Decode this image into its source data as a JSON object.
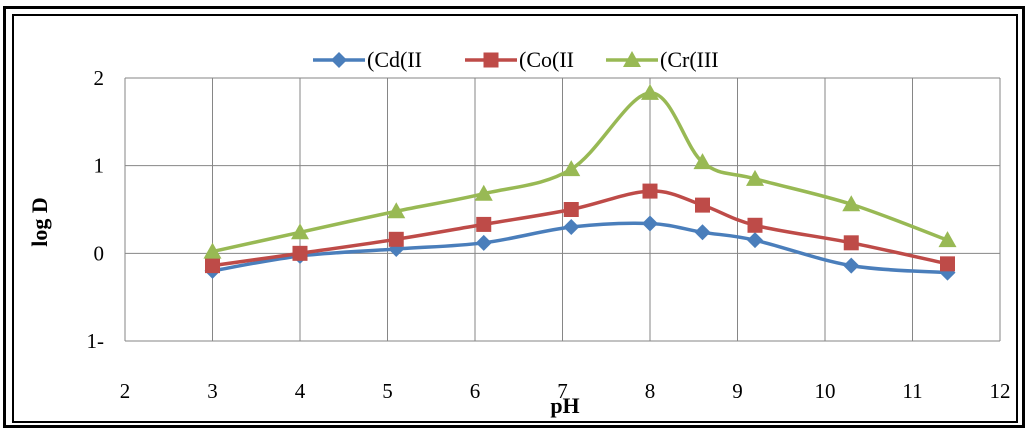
{
  "chart_data": {
    "type": "line",
    "xlabel": "pH",
    "ylabel": "log D",
    "xlim": [
      2,
      12
    ],
    "ylim": [
      -1,
      2
    ],
    "x_ticks": [
      "2",
      "3",
      "4",
      "5",
      "6",
      "7",
      "8",
      "9",
      "10",
      "11",
      "12"
    ],
    "y_ticks": [
      "2",
      "1",
      "0",
      "1-"
    ],
    "grid": true,
    "legend_position": "top",
    "smooth": true,
    "series": [
      {
        "name": "(Cd(II",
        "color": "#4a7ebb",
        "marker": "diamond",
        "x": [
          3,
          4,
          5.1,
          6.1,
          7.1,
          8,
          8.6,
          9.2,
          10.3,
          11.4
        ],
        "y": [
          -0.2,
          -0.03,
          0.05,
          0.12,
          0.3,
          0.34,
          0.24,
          0.15,
          -0.14,
          -0.22
        ]
      },
      {
        "name": "(Co(II",
        "color": "#be4b48",
        "marker": "square",
        "x": [
          3,
          4,
          5.1,
          6.1,
          7.1,
          8,
          8.6,
          9.2,
          10.3,
          11.4
        ],
        "y": [
          -0.14,
          0.0,
          0.16,
          0.33,
          0.5,
          0.71,
          0.55,
          0.32,
          0.12,
          -0.12
        ]
      },
      {
        "name": "(Cr(III",
        "color": "#98b954",
        "marker": "triangle",
        "x": [
          3,
          4,
          5.1,
          6.1,
          7.1,
          8,
          8.6,
          9.2,
          10.3,
          11.4
        ],
        "y": [
          0.02,
          0.24,
          0.48,
          0.68,
          0.96,
          1.83,
          1.04,
          0.85,
          0.56,
          0.15
        ]
      }
    ]
  }
}
